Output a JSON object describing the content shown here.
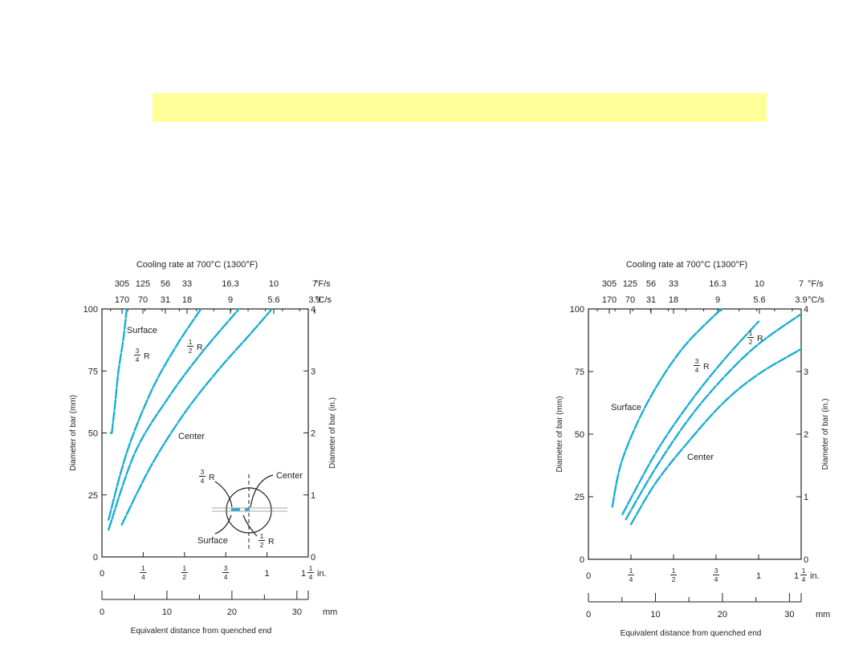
{
  "banner": {
    "color": "#ffff99"
  },
  "colors": {
    "curve": "#1aaed3",
    "axis": "#222222"
  },
  "chart_data": [
    {
      "type": "line",
      "title": "Cooling rate at 700°C (1300°F)",
      "xlabel": "Equivalent distance from quenched end",
      "ylabel": "Diameter of bar (mm)",
      "ylabel_right": "Diameter of bar (in.)",
      "xlim_in": [
        0,
        1.25
      ],
      "ylim": [
        0,
        100
      ],
      "grid": false,
      "x_ticks_in": [
        "0",
        "1/4",
        "1/2",
        "3/4",
        "1",
        "1 1/4"
      ],
      "x_unit_in": "in.",
      "x_ticks_mm": [
        "0",
        "10",
        "20",
        "30"
      ],
      "x_unit_mm": "mm",
      "y_ticks": [
        "0",
        "25",
        "50",
        "75",
        "100"
      ],
      "y_ticks_right": [
        "0",
        "1",
        "2",
        "3",
        "4"
      ],
      "top_ticks_F": [
        "305",
        "125",
        "56",
        "33",
        "16.3",
        "10",
        "7"
      ],
      "top_unit_F": "°F/s",
      "top_ticks_C": [
        "170",
        "70",
        "31",
        "18",
        "9",
        "5.6",
        "3.9"
      ],
      "top_unit_C": "°C/s",
      "series": [
        {
          "name": "Surface",
          "x": [
            0.06,
            0.08,
            0.1,
            0.13,
            0.15
          ],
          "y": [
            50,
            62,
            75,
            88,
            100
          ]
        },
        {
          "name": "3/4 R",
          "x": [
            0.04,
            0.15,
            0.3,
            0.45,
            0.6
          ],
          "y": [
            15,
            42,
            67,
            85,
            100
          ]
        },
        {
          "name": "1/2 R",
          "x": [
            0.04,
            0.2,
            0.4,
            0.6,
            0.83
          ],
          "y": [
            11,
            42,
            64,
            82,
            100
          ]
        },
        {
          "name": "Center",
          "x": [
            0.12,
            0.3,
            0.5,
            0.7,
            0.9,
            1.03
          ],
          "y": [
            13,
            37,
            58,
            75,
            90,
            100
          ]
        }
      ],
      "annotations": {
        "surface": "Surface",
        "three_quarter_r": "3/4 R",
        "half_r": "1/2 R",
        "center": "Center",
        "inset_three_quarter_r": "3/4 R",
        "inset_center": "Center",
        "inset_surface": "Surface",
        "inset_half_r": "1/2 R"
      }
    },
    {
      "type": "line",
      "title": "Cooling rate at 700°C (1300°F)",
      "xlabel": "Equivalent distance from quenched end",
      "ylabel": "Diameter of bar (mm)",
      "ylabel_right": "Diameter of bar (in.)",
      "xlim_in": [
        0,
        1.25
      ],
      "ylim": [
        0,
        100
      ],
      "grid": false,
      "x_ticks_in": [
        "0",
        "1/4",
        "1/2",
        "3/4",
        "1",
        "1 1/4"
      ],
      "x_unit_in": "in.",
      "x_ticks_mm": [
        "0",
        "10",
        "20",
        "30"
      ],
      "x_unit_mm": "mm",
      "y_ticks": [
        "0",
        "25",
        "50",
        "75",
        "100"
      ],
      "y_ticks_right": [
        "0",
        "1",
        "2",
        "3",
        "4"
      ],
      "top_ticks_F": [
        "305",
        "125",
        "56",
        "33",
        "16.3",
        "10",
        "7"
      ],
      "top_unit_F": "°F/s",
      "top_ticks_C": [
        "170",
        "70",
        "31",
        "18",
        "9",
        "5.6",
        "3.9"
      ],
      "top_unit_C": "°C/s",
      "series": [
        {
          "name": "Surface",
          "x": [
            0.14,
            0.2,
            0.35,
            0.55,
            0.78
          ],
          "y": [
            21,
            40,
            63,
            84,
            100
          ]
        },
        {
          "name": "3/4 R",
          "x": [
            0.2,
            0.4,
            0.6,
            0.8,
            1.0
          ],
          "y": [
            18,
            43,
            63,
            80,
            95
          ]
        },
        {
          "name": "1/2 R",
          "x": [
            0.22,
            0.4,
            0.6,
            0.8,
            1.0,
            1.25
          ],
          "y": [
            16,
            37,
            57,
            73,
            86,
            98
          ]
        },
        {
          "name": "Center",
          "x": [
            0.25,
            0.4,
            0.6,
            0.8,
            1.0,
            1.25
          ],
          "y": [
            14,
            31,
            48,
            63,
            74,
            84
          ]
        }
      ],
      "annotations": {
        "surface": "Surface",
        "three_quarter_r": "3/4 R",
        "half_r": "1/2 R",
        "center": "Center"
      }
    }
  ]
}
